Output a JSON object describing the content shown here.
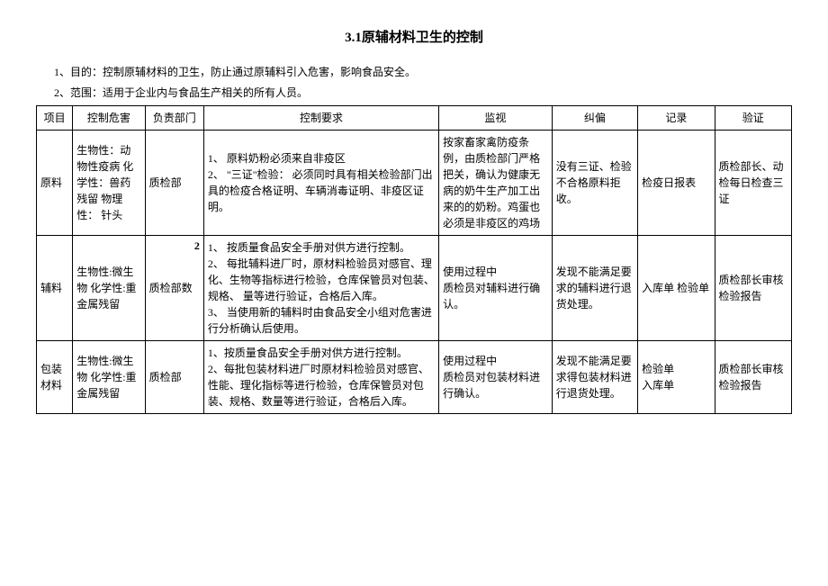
{
  "title": {
    "text": "3.1原辅材料卫生的控制",
    "fontsize": 15
  },
  "intro": {
    "line1": "1、目的：控制原辅材料的卫生，防止通过原辅料引入危害，影响食品安全。",
    "line2": "2、范围：适用于企业内与食品生产相关的所有人员。"
  },
  "headers": {
    "item": "项目",
    "hazard": "控制危害",
    "dept": "负责部门",
    "requirement": "控制要求",
    "monitor": "监视",
    "correction": "纠偏",
    "record": "记录",
    "verify": "验证"
  },
  "rows": [
    {
      "item": "原料",
      "hazard": "生物性：动物性疫病 化学性：兽药残留 物理性： 针头",
      "dept": "质检部",
      "dept_marker": "",
      "requirement": "1、 原料奶粉必须来自非疫区\n2、 \"三证\"检验： 必须同时具有相关检验部门出具的检疫合格证明、车辆消毒证明、非疫区证明。",
      "monitor": "按家畜家禽防疫条 例，由质检部门严格 把关，确认为健康无 病的奶牛生产加工出 来的的奶粉。鸡蛋也 必须是非疫区的鸡场",
      "correction": "没有三证、检验不合格原料拒 收。",
      "record": "检疫日报表",
      "verify": "质检部长、动检每日检查三证"
    },
    {
      "item": "辅料",
      "hazard": "生物性:微生物 化学性:重 金属残留",
      "dept": "质检部数",
      "dept_marker": "2",
      "requirement": "1、 按质量食品安全手册对供方进行控制。\n2、 每批辅料进厂时，原材料检验员对感官、理化、生物等指标进行检验，仓库保管员对包装、规格、 量等进行验证，合格后入库。\n3、 当使用新的辅料时由食品安全小组对危害进行分析确认后使用。",
      "monitor": "使用过程中\n质检员对辅料进行确认。",
      "correction": "发现不能满足要求的辅料进行退货处理。",
      "record": "入库单 检验单",
      "verify": "质检部长审核检验报告"
    },
    {
      "item": "包装材料",
      "hazard": "生物性:微生物 化学性:重 金属残留",
      "dept": "质检部",
      "dept_marker": "",
      "requirement": "1、按质量食品安全手册对供方进行控制。\n2、每批包装材料进厂时原材料检验员对感官、性能、理化指标等进行检验，仓库保管员对包装、规格、数量等进行验证，合格后入库。",
      "monitor": "使用过程中\n质检员对包装材料进行确认。",
      "correction": "发现不能满足要求得包装材料进行退货处理。",
      "record": "检验单\n入库单",
      "verify": "质检部长审核检验报告"
    }
  ],
  "style": {
    "background": "#ffffff",
    "border_color": "#000000",
    "font_family": "SimSun",
    "body_fontsize": 12
  }
}
